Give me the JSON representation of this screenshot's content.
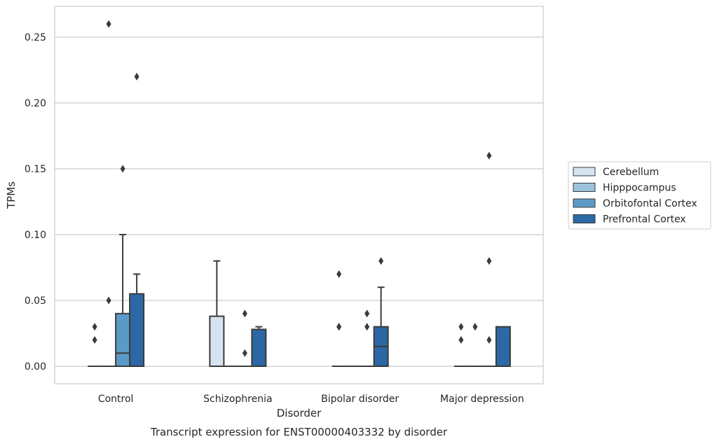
{
  "chart_data": {
    "type": "box",
    "title": "",
    "caption": "Transcript expression for ENST00000403332 by disorder",
    "xlabel": "Disorder",
    "ylabel": "TPMs",
    "ylim": [
      -0.0125,
      0.2745
    ],
    "yticks": [
      "0.00",
      "0.05",
      "0.10",
      "0.15",
      "0.20",
      "0.25"
    ],
    "ytick_values": [
      0,
      0.05,
      0.1,
      0.15,
      0.2,
      0.25
    ],
    "grid": "horizontal",
    "legend_position": "right",
    "categories": [
      "Control",
      "Schizophrenia",
      "Bipolar disorder",
      "Major depression"
    ],
    "series": [
      {
        "name": "Cerebellum",
        "color": "#d6e4f1",
        "boxes": [
          {
            "q1": 0,
            "median": 0,
            "q3": 0,
            "whislo": 0,
            "whishi": 0,
            "fliers": [
              0.02,
              0.03
            ]
          },
          {
            "q1": 0,
            "median": 0,
            "q3": 0.038,
            "whislo": 0,
            "whishi": 0.08,
            "fliers": []
          },
          {
            "q1": 0,
            "median": 0,
            "q3": 0,
            "whislo": 0,
            "whishi": 0,
            "fliers": [
              0.03,
              0.03,
              0.07
            ]
          },
          {
            "q1": 0,
            "median": 0,
            "q3": 0,
            "whislo": 0,
            "whishi": 0,
            "fliers": [
              0.02,
              0.03
            ]
          }
        ]
      },
      {
        "name": "Hipppocampus",
        "color": "#9cc3de",
        "boxes": [
          {
            "q1": 0,
            "median": 0,
            "q3": 0,
            "whislo": 0,
            "whishi": 0,
            "fliers": [
              0.05,
              0.26
            ]
          },
          {
            "q1": 0,
            "median": 0,
            "q3": 0,
            "whislo": 0,
            "whishi": 0,
            "fliers": []
          },
          {
            "q1": 0,
            "median": 0,
            "q3": 0,
            "whislo": 0,
            "whishi": 0,
            "fliers": []
          },
          {
            "q1": 0,
            "median": 0,
            "q3": 0,
            "whislo": 0,
            "whishi": 0,
            "fliers": [
              0.03
            ]
          }
        ]
      },
      {
        "name": "Orbitofontal Cortex",
        "color": "#5b9ac7",
        "boxes": [
          {
            "q1": 0,
            "median": 0.01,
            "q3": 0.04,
            "whislo": 0,
            "whishi": 0.1,
            "fliers": [
              0.15
            ]
          },
          {
            "q1": 0,
            "median": 0,
            "q3": 0,
            "whislo": 0,
            "whishi": 0,
            "fliers": [
              0.01,
              0.04
            ]
          },
          {
            "q1": 0,
            "median": 0,
            "q3": 0,
            "whislo": 0,
            "whishi": 0,
            "fliers": [
              0.03,
              0.04
            ]
          },
          {
            "q1": 0,
            "median": 0,
            "q3": 0,
            "whislo": 0,
            "whishi": 0,
            "fliers": [
              0.02,
              0.08,
              0.16
            ]
          }
        ]
      },
      {
        "name": "Prefrontal Cortex",
        "color": "#2b68a5",
        "boxes": [
          {
            "q1": 0,
            "median": 0,
            "q3": 0.055,
            "whislo": 0,
            "whishi": 0.07,
            "fliers": [
              0.22
            ]
          },
          {
            "q1": 0,
            "median": 0,
            "q3": 0.028,
            "whislo": 0,
            "whishi": 0.03,
            "fliers": []
          },
          {
            "q1": 0,
            "median": 0.015,
            "q3": 0.03,
            "whislo": 0,
            "whishi": 0.06,
            "fliers": [
              0.08
            ]
          },
          {
            "q1": 0,
            "median": 0,
            "q3": 0.03,
            "whislo": 0,
            "whishi": 0.03,
            "fliers": []
          }
        ]
      }
    ]
  }
}
